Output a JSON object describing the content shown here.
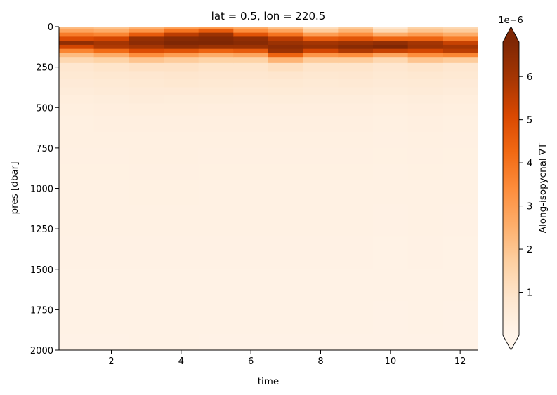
{
  "chart_data": {
    "type": "heatmap",
    "title": "lat = 0.5, lon = 220.5",
    "xlabel": "time",
    "ylabel": "pres [dbar]",
    "colorbar_label": "Along-isopycnal ∇T",
    "colorbar_exponent": "1e−6",
    "colormap": "Oranges",
    "colormap_stops": [
      "#fff5eb",
      "#fee6ce",
      "#fdd0a2",
      "#fdae6b",
      "#fd8d3c",
      "#f16913",
      "#d94801",
      "#a63603",
      "#7f2704"
    ],
    "vmin": 0,
    "vmax": 6.8,
    "colorbar_extend": "both",
    "xlim": [
      0.5,
      12.5
    ],
    "ylim": [
      2000,
      0
    ],
    "x": [
      1,
      2,
      3,
      4,
      5,
      6,
      7,
      8,
      9,
      10,
      11,
      12
    ],
    "x_ticks": [
      2,
      4,
      6,
      8,
      10,
      12
    ],
    "x_tick_labels": [
      "2",
      "4",
      "6",
      "8",
      "10",
      "12"
    ],
    "y_ticks": [
      0,
      250,
      500,
      750,
      1000,
      1250,
      1500,
      1750,
      2000
    ],
    "y_tick_labels": [
      "0",
      "250",
      "500",
      "750",
      "1000",
      "1250",
      "1500",
      "1750",
      "2000"
    ],
    "colorbar_ticks": [
      1,
      2,
      3,
      4,
      5,
      6
    ],
    "colorbar_tick_labels": [
      "1",
      "2",
      "3",
      "4",
      "5",
      "6"
    ],
    "profile_pressure": [
      0,
      25,
      50,
      75,
      100,
      125,
      150,
      175,
      200,
      250,
      300,
      350,
      400,
      450,
      500,
      600,
      700,
      800,
      900,
      1000,
      1200,
      1400,
      1600,
      1800,
      2000
    ],
    "values": [
      [
        2.2,
        2.8,
        3.8,
        5.0,
        6.4,
        5.2,
        3.6,
        2.2,
        1.4,
        0.8,
        0.7,
        0.6,
        0.5,
        0.4,
        0.35,
        0.3,
        0.28,
        0.26,
        0.25,
        0.24,
        0.22,
        0.2,
        0.18,
        0.17,
        0.16
      ],
      [
        2.0,
        2.6,
        3.6,
        5.2,
        6.0,
        5.8,
        4.2,
        2.6,
        1.6,
        0.9,
        0.75,
        0.65,
        0.55,
        0.45,
        0.38,
        0.32,
        0.28,
        0.26,
        0.25,
        0.24,
        0.22,
        0.2,
        0.18,
        0.17,
        0.16
      ],
      [
        2.4,
        3.2,
        4.6,
        6.3,
        6.5,
        6.0,
        5.0,
        3.4,
        2.0,
        1.0,
        0.8,
        0.7,
        0.6,
        0.5,
        0.4,
        0.33,
        0.3,
        0.28,
        0.26,
        0.25,
        0.23,
        0.21,
        0.19,
        0.18,
        0.17
      ],
      [
        2.8,
        4.0,
        5.6,
        6.6,
        6.8,
        6.4,
        4.8,
        3.0,
        1.8,
        1.0,
        0.85,
        0.75,
        0.6,
        0.48,
        0.4,
        0.33,
        0.3,
        0.28,
        0.26,
        0.25,
        0.23,
        0.21,
        0.19,
        0.18,
        0.17
      ],
      [
        3.0,
        4.6,
        6.2,
        6.7,
        6.8,
        6.2,
        4.4,
        2.6,
        1.6,
        0.9,
        0.8,
        0.7,
        0.58,
        0.46,
        0.38,
        0.32,
        0.29,
        0.27,
        0.25,
        0.24,
        0.22,
        0.2,
        0.18,
        0.17,
        0.16
      ],
      [
        2.6,
        3.4,
        4.8,
        6.4,
        6.6,
        6.2,
        4.6,
        2.8,
        1.6,
        0.9,
        0.78,
        0.68,
        0.56,
        0.45,
        0.38,
        0.32,
        0.29,
        0.27,
        0.25,
        0.24,
        0.22,
        0.2,
        0.18,
        0.17,
        0.16
      ],
      [
        2.0,
        2.8,
        4.0,
        5.6,
        6.2,
        6.5,
        6.2,
        4.4,
        2.4,
        1.1,
        0.85,
        0.7,
        0.58,
        0.46,
        0.38,
        0.32,
        0.29,
        0.27,
        0.25,
        0.24,
        0.22,
        0.2,
        0.18,
        0.17,
        0.16
      ],
      [
        1.2,
        1.8,
        3.0,
        4.6,
        6.0,
        6.3,
        5.2,
        3.2,
        1.8,
        0.9,
        0.75,
        0.65,
        0.55,
        0.45,
        0.38,
        0.32,
        0.29,
        0.27,
        0.25,
        0.24,
        0.22,
        0.2,
        0.18,
        0.17,
        0.16
      ],
      [
        1.8,
        2.4,
        3.4,
        4.8,
        6.2,
        6.6,
        5.8,
        3.4,
        1.8,
        0.9,
        0.78,
        0.68,
        0.56,
        0.45,
        0.38,
        0.32,
        0.29,
        0.27,
        0.25,
        0.24,
        0.22,
        0.2,
        0.18,
        0.17,
        0.16
      ],
      [
        0.8,
        1.4,
        2.6,
        4.4,
        6.4,
        6.8,
        5.4,
        2.8,
        1.4,
        0.8,
        0.7,
        0.62,
        0.52,
        0.42,
        0.36,
        0.3,
        0.27,
        0.25,
        0.24,
        0.23,
        0.21,
        0.19,
        0.17,
        0.16,
        0.15
      ],
      [
        1.6,
        2.0,
        3.0,
        4.4,
        6.0,
        6.2,
        5.2,
        3.4,
        2.0,
        0.9,
        0.75,
        0.65,
        0.55,
        0.45,
        0.38,
        0.32,
        0.29,
        0.27,
        0.25,
        0.24,
        0.22,
        0.2,
        0.18,
        0.17,
        0.16
      ],
      [
        1.4,
        1.8,
        2.6,
        3.8,
        5.4,
        6.0,
        5.6,
        3.6,
        1.8,
        0.8,
        0.7,
        0.6,
        0.5,
        0.42,
        0.36,
        0.3,
        0.27,
        0.25,
        0.24,
        0.23,
        0.21,
        0.19,
        0.17,
        0.16,
        0.15
      ]
    ]
  }
}
